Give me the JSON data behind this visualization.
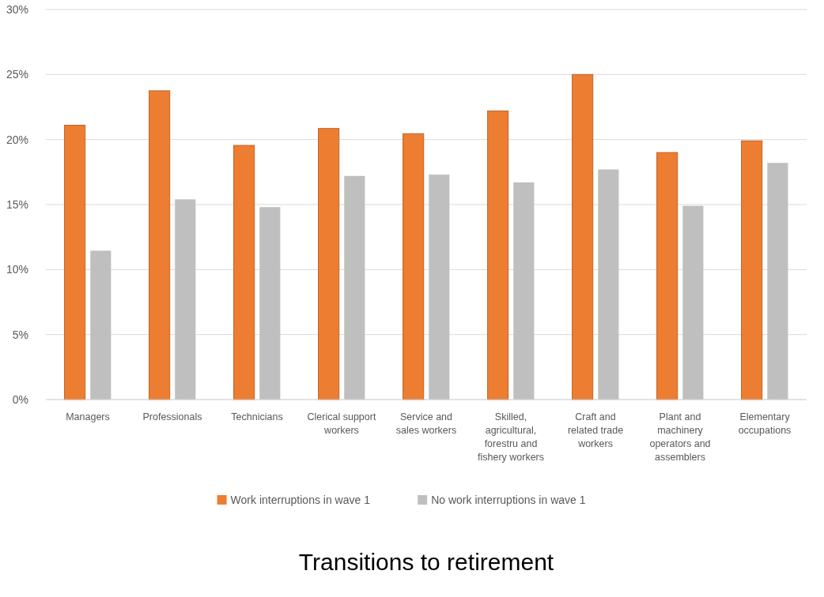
{
  "chart_data": {
    "type": "bar",
    "title": "Transitions to retirement",
    "categories": [
      "Managers",
      "Professionals",
      "Technicians",
      "Clerical support workers",
      "Service and sales workers",
      "Skilled, agricultural, forestru and fishery workers",
      "Craft and related trade workers",
      "Plant and machinery operators and assemblers",
      "Elementary occupations"
    ],
    "series": [
      {
        "name": "Work interruptions in wave 1",
        "color": "#ed7d31",
        "values": [
          21.1,
          23.75,
          19.55,
          20.85,
          20.45,
          22.2,
          25.0,
          19.0,
          19.9
        ]
      },
      {
        "name": "No work interruptions in wave 1",
        "color": "#bfbfbf",
        "values": [
          11.45,
          15.4,
          14.8,
          17.2,
          17.3,
          16.7,
          17.7,
          14.9,
          18.2
        ]
      }
    ],
    "ylim": [
      0,
      30
    ],
    "yticks": [
      {
        "value": 0,
        "label": "0%"
      },
      {
        "value": 5,
        "label": "5%"
      },
      {
        "value": 10,
        "label": "10%"
      },
      {
        "value": 15,
        "label": "15%"
      },
      {
        "value": 20,
        "label": "20%"
      },
      {
        "value": 25,
        "label": "25%"
      },
      {
        "value": 30,
        "label": "30%"
      }
    ],
    "grid": "y",
    "legend": "bottom"
  }
}
